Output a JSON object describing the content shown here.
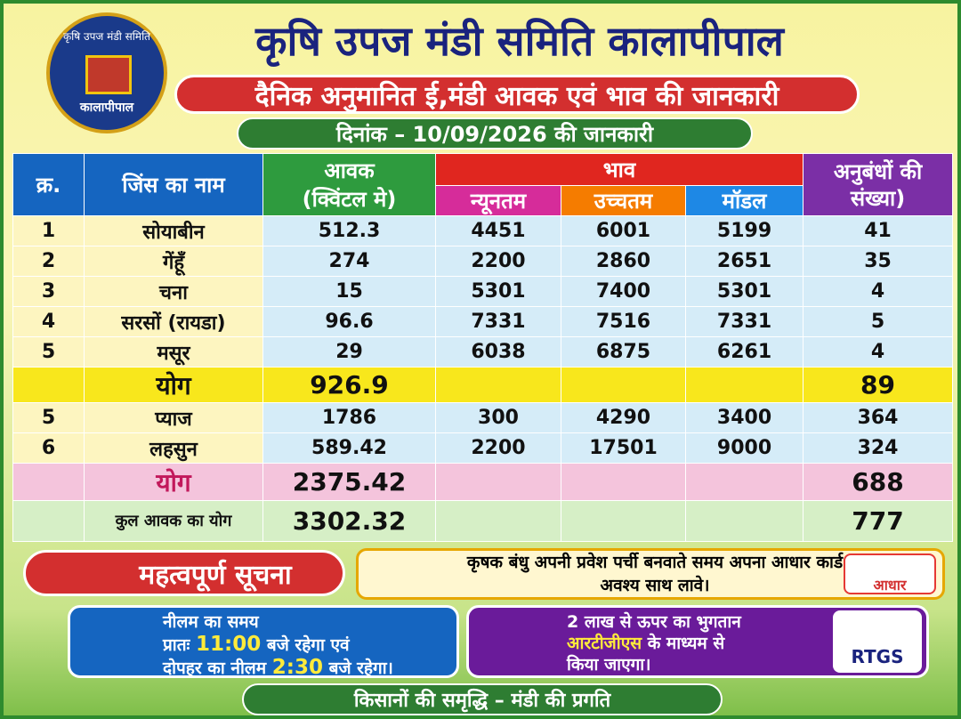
{
  "header": {
    "logo_top": "कृषि उपज मंडी समिति",
    "logo_bottom": "कालापीपाल",
    "title": "कृषि उपज मंडी समिति कालापीपाल",
    "subtitle": "दैनिक अनुमानित ई,मंडी आवक एवं भाव की जानकारी",
    "date_line": "दिनांक – 10/09/2026 की जानकारी"
  },
  "table": {
    "headers": {
      "serial": "क्र.",
      "name": "जिंस का नाम",
      "arrival": "आवक",
      "arrival_unit": "(क्विंटल मे)",
      "price": "भाव",
      "min": "न्यूनतम",
      "max": "उच्चतम",
      "modal": "मॉडल",
      "contracts": "अनुबंधों की",
      "contracts_2": "संख्या)"
    },
    "sections": [
      {
        "rows": [
          {
            "serial": "1",
            "name": "सोयाबीन",
            "arrival": "512.3",
            "min": "4451",
            "max": "6001",
            "modal": "5199",
            "contracts": "41"
          },
          {
            "serial": "2",
            "name": "गेंहूँ",
            "arrival": "274",
            "min": "2200",
            "max": "2860",
            "modal": "2651",
            "contracts": "35"
          },
          {
            "serial": "3",
            "name": "चना",
            "arrival": "15",
            "min": "5301",
            "max": "7400",
            "modal": "5301",
            "contracts": "4"
          },
          {
            "serial": "4",
            "name": "सरसों (रायडा)",
            "arrival": "96.6",
            "min": "7331",
            "max": "7516",
            "modal": "7331",
            "contracts": "5"
          },
          {
            "serial": "5",
            "name": "मसूर",
            "arrival": "29",
            "min": "6038",
            "max": "6875",
            "modal": "6261",
            "contracts": "4"
          }
        ],
        "total": {
          "name": "योग",
          "arrival": "926.9",
          "contracts": "89"
        }
      },
      {
        "rows": [
          {
            "serial": "5",
            "name": "प्याज",
            "arrival": "1786",
            "min": "300",
            "max": "4290",
            "modal": "3400",
            "contracts": "364"
          },
          {
            "serial": "6",
            "name": "लहसुन",
            "arrival": "589.42",
            "min": "2200",
            "max": "17501",
            "modal": "9000",
            "contracts": "324"
          }
        ],
        "total": {
          "name": "योग",
          "arrival": "2375.42",
          "contracts": "688"
        }
      }
    ],
    "grand_total": {
      "name": "कुल आवक का योग",
      "arrival": "3302.32",
      "contracts": "777"
    }
  },
  "notice": {
    "heading": "महत्वपूर्ण सूचना",
    "text": "कृषक बंधु अपनी प्रवेश पर्ची बनवाते समय अपना आधार कार्ड अवश्य साथ लावे।",
    "aadhaar": "आधार"
  },
  "auction": {
    "title": "नीलम का समय",
    "morning_label": "प्रातः",
    "morning_time": "11:00",
    "morning_suffix": "बजे रहेगा एवं",
    "afternoon_label": "दोपहर का नीलम",
    "afternoon_time": "2:30",
    "afternoon_suffix": "बजे रहेगा।"
  },
  "payment": {
    "line1": "2 लाख से ऊपर का भुगतान",
    "highlight": "आरटीजीएस",
    "line2_suffix": "के माध्यम से",
    "line3": "किया जाएगा।",
    "badge": "RTGS"
  },
  "footer": {
    "slogan": "किसानों की समृद्धि – मंडी की प्रगति"
  }
}
